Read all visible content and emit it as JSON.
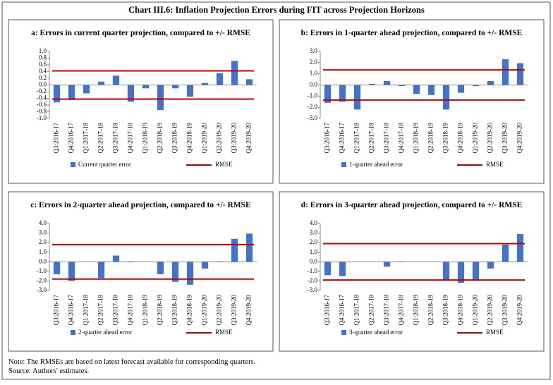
{
  "title": "Chart III.6: Inflation Projection Errors during FIT across Projection Horizons",
  "notes": [
    "Note: The RMSEs are based on latest forecast available for corresponding quarters.",
    "Source: Authors' estimates."
  ],
  "chart_data": [
    {
      "type": "bar",
      "title": "a: Errors in current quarter projection, compared to +/- RMSE",
      "categories": [
        "Q3:2016-17",
        "Q4:2016-17",
        "Q1:2017-18",
        "Q2:2017-18",
        "Q3:2017-18",
        "Q4:2017-18",
        "Q1:2018-19",
        "Q2:2018-19",
        "Q3:2018-19",
        "Q4:2018-19",
        "Q1:2019-20",
        "Q2:2019-20",
        "Q3:2019-20",
        "Q4:2019-20"
      ],
      "series": [
        {
          "name": "Current quarter error",
          "color": "#4472c4",
          "values": [
            -0.52,
            -0.45,
            -0.25,
            0.1,
            0.28,
            -0.5,
            -0.1,
            -0.75,
            -0.1,
            -0.35,
            0.06,
            0.35,
            0.72,
            0.17
          ]
        }
      ],
      "rmse": {
        "name": "RMSE",
        "color": "#c00000",
        "values": [
          0.42,
          -0.42
        ]
      },
      "ylim": [
        -1,
        1
      ],
      "yticks": [
        {
          "value": -1,
          "label": "-1.0"
        },
        -0.8,
        -0.6,
        -0.4,
        -0.2,
        {
          "value": 0,
          "label": "0.0"
        },
        0.2,
        0.4,
        0.6,
        0.8,
        {
          "value": 1,
          "label": "1.0"
        }
      ]
    },
    {
      "type": "bar",
      "title": "b: Errors in 1-quarter ahead projection, compared to +/- RMSE",
      "categories": [
        "Q3:2016-17",
        "Q4:2016-17",
        "Q1:2017-18",
        "Q2:2017-18",
        "Q3:2017-18",
        "Q4:2017-18",
        "Q1:2018-19",
        "Q2:2018-19",
        "Q3:2018-19",
        "Q4:2018-19",
        "Q1:2019-20",
        "Q2:2019-20",
        "Q3:2019-20",
        "Q4:2019-20"
      ],
      "series": [
        {
          "name": "1-quarter ahead error",
          "color": "#4472c4",
          "values": [
            -1.6,
            -1.5,
            -2.2,
            0.1,
            0.35,
            -0.1,
            -0.8,
            -0.9,
            -2.2,
            -0.7,
            -0.1,
            0.35,
            2.3,
            1.95
          ]
        }
      ],
      "rmse": {
        "name": "RMSE",
        "color": "#c00000",
        "values": [
          1.35,
          -1.35
        ]
      },
      "ylim": [
        -3,
        3
      ],
      "yticks": [
        {
          "value": -3,
          "label": "-3.0"
        },
        {
          "value": -2,
          "label": "-2.0"
        },
        {
          "value": -1,
          "label": "-1.0"
        },
        {
          "value": 0,
          "label": "0.0"
        },
        {
          "value": 1,
          "label": "1.0"
        },
        {
          "value": 2,
          "label": "2.0"
        },
        {
          "value": 3,
          "label": "3.0"
        }
      ]
    },
    {
      "type": "bar",
      "title": "c: Errors in 2-quarter ahead projection, compared to +/- RMSE",
      "categories": [
        "Q3:2016-17",
        "Q4:2016-17",
        "Q1:2017-18",
        "Q2:2017-18",
        "Q3:2017-18",
        "Q4:2017-18",
        "Q1:2018-19",
        "Q2:2018-19",
        "Q3:2018-19",
        "Q4:2018-19",
        "Q1:2019-20",
        "Q2:2019-20",
        "Q3:2019-20",
        "Q4:2019-20"
      ],
      "series": [
        {
          "name": "2-quarter ahead error",
          "color": "#4472c4",
          "values": [
            -1.3,
            -2.0,
            0,
            -1.7,
            0.65,
            0.05,
            0,
            -1.3,
            -2.1,
            -2.4,
            -0.7,
            0.05,
            2.4,
            2.95
          ]
        }
      ],
      "rmse": {
        "name": "RMSE",
        "color": "#c00000",
        "values": [
          1.8,
          -1.8
        ]
      },
      "ylim": [
        -3,
        4
      ],
      "yticks": [
        {
          "value": -3,
          "label": "-3.0"
        },
        {
          "value": -2,
          "label": "-2.0"
        },
        {
          "value": -1,
          "label": "-1.0"
        },
        {
          "value": 0,
          "label": "0.0"
        },
        {
          "value": 1,
          "label": "1.0"
        },
        {
          "value": 2,
          "label": "2.0"
        },
        {
          "value": 3,
          "label": "3.0"
        },
        {
          "value": 4,
          "label": "4.0"
        }
      ]
    },
    {
      "type": "bar",
      "title": "d: Errors in 3-quarter ahead projection, compared to +/- RMSE",
      "categories": [
        "Q3:2016-17",
        "Q4:2016-17",
        "Q1:2017-18",
        "Q2:2017-18",
        "Q3:2017-18",
        "Q4:2017-18",
        "Q1:2018-19",
        "Q2:2018-19",
        "Q3:2018-19",
        "Q4:2018-19",
        "Q1:2019-20",
        "Q2:2019-20",
        "Q3:2019-20",
        "Q4:2019-20"
      ],
      "series": [
        {
          "name": "3-quarter ahead error",
          "color": "#4472c4",
          "values": [
            -1.4,
            -1.5,
            0,
            0,
            -0.5,
            0.05,
            0,
            0,
            -1.9,
            -2.2,
            -1.9,
            -0.7,
            1.8,
            2.9
          ]
        }
      ],
      "rmse": {
        "name": "RMSE",
        "color": "#c00000",
        "values": [
          1.9,
          -1.9
        ]
      },
      "ylim": [
        -3,
        4
      ],
      "yticks": [
        {
          "value": -3,
          "label": "-3.0"
        },
        {
          "value": -2,
          "label": "-2.0"
        },
        {
          "value": -1,
          "label": "-1.0"
        },
        {
          "value": 0,
          "label": "0.0"
        },
        {
          "value": 1,
          "label": "1.0"
        },
        {
          "value": 2,
          "label": "2.0"
        },
        {
          "value": 3,
          "label": "3.0"
        },
        {
          "value": 4,
          "label": "4.0"
        }
      ]
    }
  ]
}
